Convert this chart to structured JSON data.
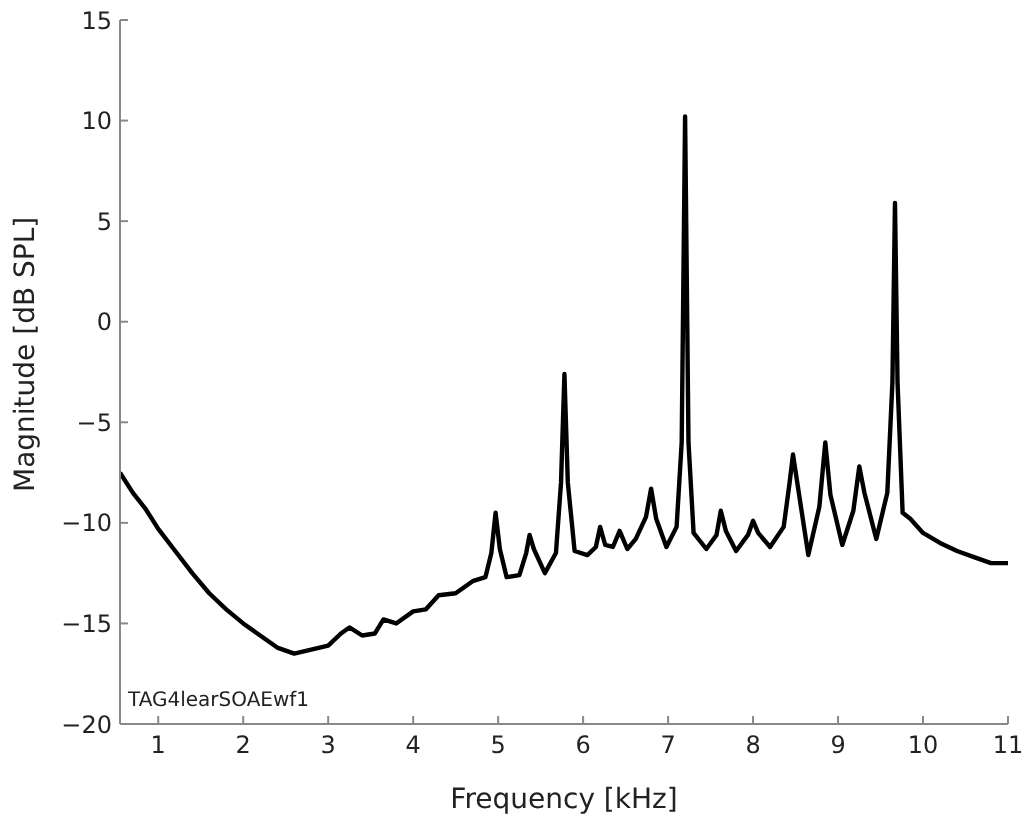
{
  "chart_data": {
    "type": "line",
    "xlabel": "Frequency [kHz]",
    "ylabel": "Magnitude [dB SPL]",
    "annotations": [
      "TAG4learSOAEwf1"
    ],
    "x": [
      0.55,
      0.7,
      0.85,
      1,
      1.2,
      1.4,
      1.6,
      1.8,
      2,
      2.2,
      2.4,
      2.6,
      2.8,
      3,
      3.15,
      3.25,
      3.4,
      3.55,
      3.65,
      3.8,
      4,
      4.15,
      4.3,
      4.5,
      4.7,
      4.85,
      4.92,
      4.97,
      5.02,
      5.1,
      5.25,
      5.33,
      5.37,
      5.42,
      5.55,
      5.68,
      5.74,
      5.78,
      5.82,
      5.9,
      6.05,
      6.15,
      6.2,
      6.26,
      6.35,
      6.43,
      6.52,
      6.62,
      6.74,
      6.8,
      6.86,
      6.98,
      7.1,
      7.16,
      7.2,
      7.24,
      7.3,
      7.45,
      7.57,
      7.62,
      7.68,
      7.8,
      7.94,
      8.0,
      8.06,
      8.2,
      8.36,
      8.43,
      8.47,
      8.52,
      8.65,
      8.78,
      8.85,
      8.91,
      9.05,
      9.18,
      9.25,
      9.31,
      9.45,
      9.58,
      9.64,
      9.67,
      9.7,
      9.76,
      9.85,
      10,
      10.2,
      10.4,
      10.6,
      10.8,
      11
    ],
    "series": [
      {
        "color": "#000000",
        "values": [
          -7.5,
          -8.5,
          -9.3,
          -10.3,
          -11.4,
          -12.5,
          -13.5,
          -14.3,
          -15,
          -15.6,
          -16.2,
          -16.5,
          -16.3,
          -16.1,
          -15.5,
          -15.2,
          -15.6,
          -15.5,
          -14.8,
          -15,
          -14.4,
          -14.3,
          -13.6,
          -13.5,
          -12.9,
          -12.7,
          -11.5,
          -9.5,
          -11.3,
          -12.7,
          -12.6,
          -11.5,
          -10.6,
          -11.3,
          -12.5,
          -11.5,
          -8,
          -2.6,
          -8,
          -11.4,
          -11.6,
          -11.2,
          -10.2,
          -11.1,
          -11.2,
          -10.4,
          -11.3,
          -10.8,
          -9.7,
          -8.3,
          -9.8,
          -11.2,
          -10.2,
          -6,
          10.2,
          -6,
          -10.5,
          -11.3,
          -10.6,
          -9.4,
          -10.4,
          -11.4,
          -10.6,
          -9.9,
          -10.5,
          -11.2,
          -10.2,
          -8,
          -6.6,
          -8,
          -11.6,
          -9.2,
          -6,
          -8.6,
          -11.1,
          -9.4,
          -7.2,
          -8.5,
          -10.8,
          -8.5,
          -3,
          5.9,
          -3,
          -9.5,
          -9.8,
          -10.5,
          -11,
          -11.4,
          -11.7,
          -12,
          -12
        ]
      }
    ],
    "xlim": [
      0.55,
      11
    ],
    "xticks": [
      1,
      2,
      3,
      4,
      5,
      6,
      7,
      8,
      9,
      10,
      11
    ],
    "ylim": [
      -20,
      15
    ],
    "yticks": [
      -20,
      -15,
      -10,
      -5,
      0,
      5,
      10,
      15
    ],
    "marker": "none",
    "line_style": "solid"
  }
}
